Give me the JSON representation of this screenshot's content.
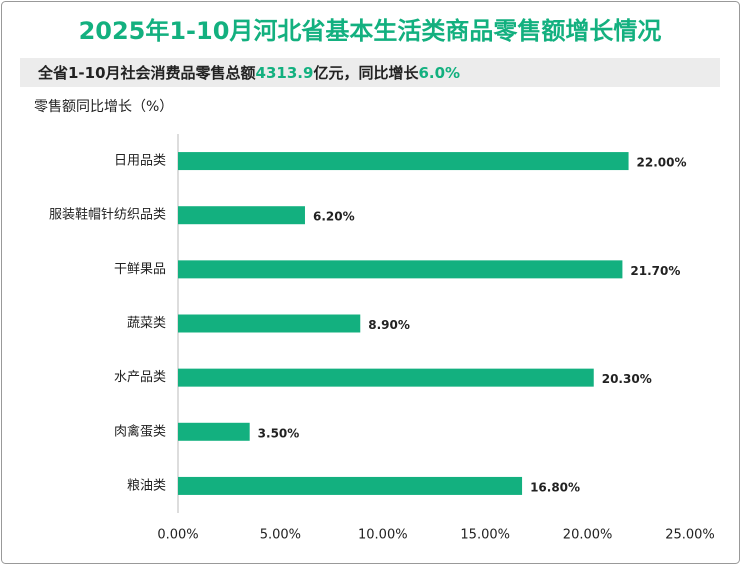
{
  "chart_data": {
    "type": "hbar",
    "title": "2025年1-10月河北省基本生活类商品零售额增长情况",
    "subtitle": [
      "全省1-10月社会消费品零售总额",
      "4313.9",
      "亿元，同比增长",
      "6.0%"
    ],
    "axis_label": "零售额同比增长（%）",
    "categories": [
      "日用品类",
      "服装鞋帽针纺织品类",
      "干鲜果品",
      "蔬菜类",
      "水产品类",
      "肉禽蛋类",
      "粮油类"
    ],
    "values": [
      22.0,
      6.2,
      21.7,
      8.9,
      20.3,
      3.5,
      16.8
    ],
    "value_labels": [
      "22.00%",
      "6.20%",
      "21.70%",
      "8.90%",
      "20.30%",
      "3.50%",
      "16.80%"
    ],
    "color": "#13b07f",
    "xlim": [
      0,
      25
    ],
    "xticks": [
      {
        "value": 0,
        "label": "0.00%"
      },
      {
        "value": 5,
        "label": "5.00%"
      },
      {
        "value": 10,
        "label": "10.00%"
      },
      {
        "value": 15,
        "label": "15.00%"
      },
      {
        "value": 20,
        "label": "20.00%"
      },
      {
        "value": 25,
        "label": "25.00%"
      }
    ]
  }
}
